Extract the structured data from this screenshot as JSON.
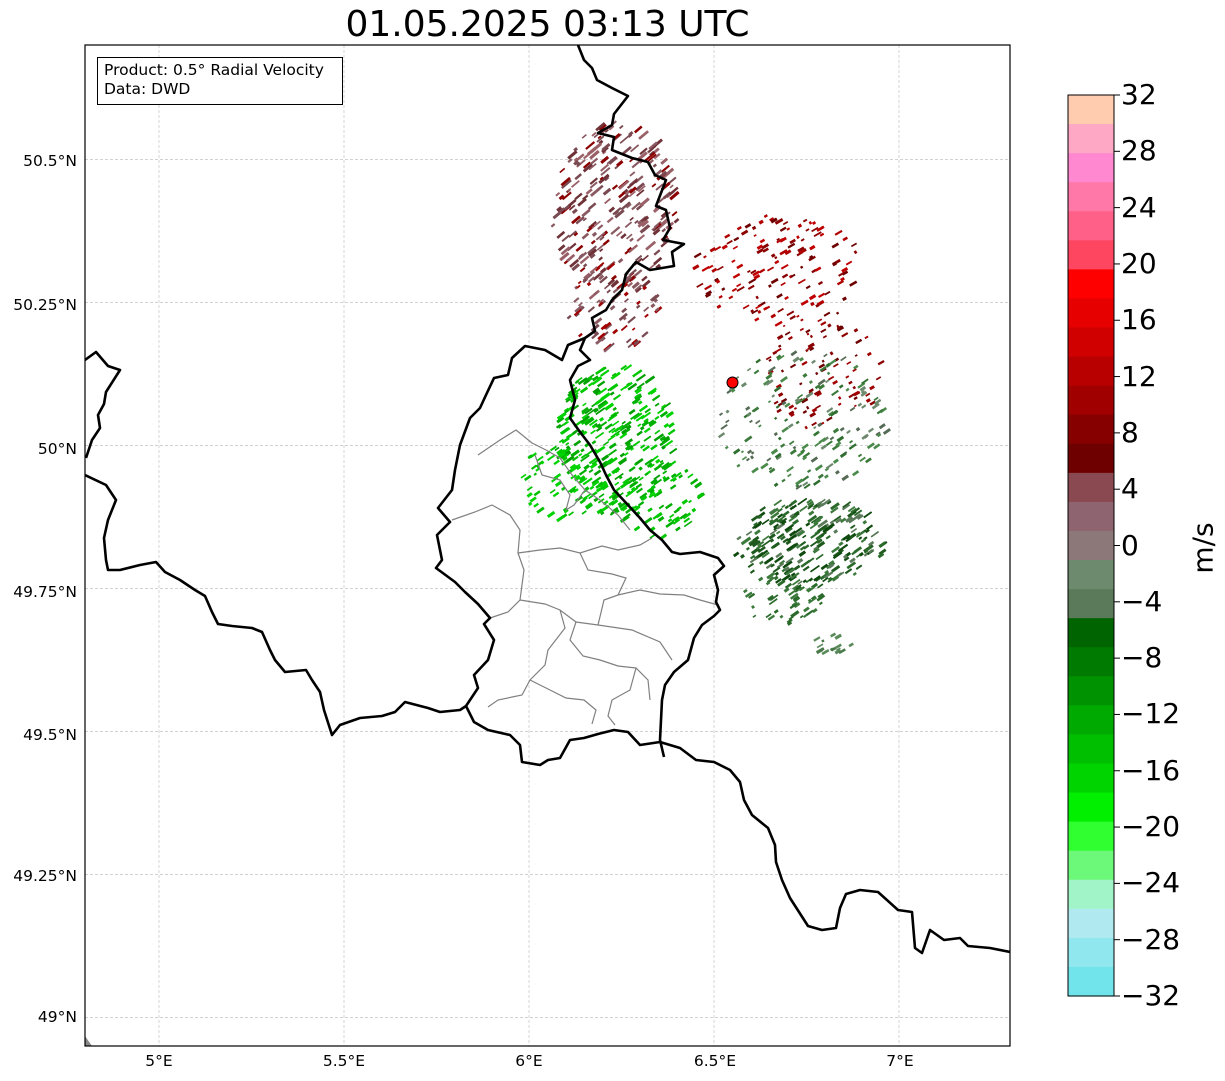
{
  "title": "01.05.2025 03:13 UTC",
  "infobox": {
    "line1": "Product: 0.5° Radial Velocity",
    "line2": "Data: DWD"
  },
  "map": {
    "lon_range": [
      4.8,
      7.3
    ],
    "lat_range": [
      48.95,
      50.7
    ],
    "x_ticks": [
      "5°E",
      "5.5°E",
      "6°E",
      "6.5°E",
      "7°E"
    ],
    "y_ticks": [
      "49°N",
      "49.25°N",
      "49.5°N",
      "49.75°N",
      "50°N",
      "50.25°N",
      "50.5°N"
    ],
    "gridlines": true,
    "radar_site": {
      "lon": 6.55,
      "lat": 50.11,
      "color": "#ff0000"
    }
  },
  "colorbar": {
    "label": "m/s",
    "range": [
      -32,
      32
    ],
    "ticks": [
      "32",
      "28",
      "24",
      "20",
      "16",
      "12",
      "8",
      "4",
      "0",
      "−4",
      "−8",
      "−12",
      "−16",
      "−20",
      "−24",
      "−28",
      "−32"
    ],
    "colors_top_to_bottom": [
      "#ffccb0",
      "#ffa8c6",
      "#ff88d0",
      "#ff78a8",
      "#ff6088",
      "#ff4660",
      "#ff0000",
      "#e60000",
      "#d00000",
      "#b80000",
      "#a00000",
      "#860000",
      "#6e0000",
      "#8a4850",
      "#8e6470",
      "#8c7878",
      "#6e8a6e",
      "#5a7a5a",
      "#006400",
      "#007a00",
      "#009200",
      "#00aa00",
      "#00bf00",
      "#00d400",
      "#00f000",
      "#30ff30",
      "#6cf878",
      "#a0f4c8",
      "#b0eaf0",
      "#90e8ee",
      "#70e4ea"
    ]
  }
}
